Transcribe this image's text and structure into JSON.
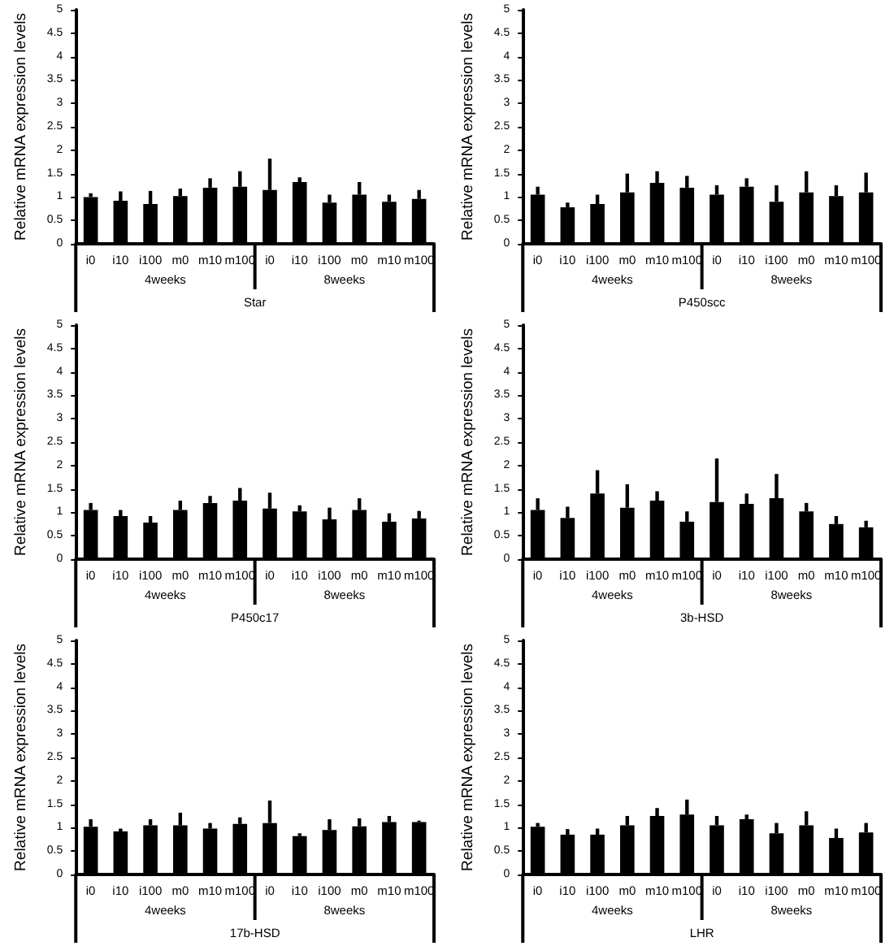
{
  "chart_data": [
    {
      "type": "bar",
      "xlabel": "Star",
      "ylabel": "Relative mRNA expression levels",
      "annotations": [
        "4weeks",
        "8weeks"
      ],
      "categories": [
        "i0",
        "i10",
        "i100",
        "m0",
        "m10",
        "m100",
        "i0",
        "i10",
        "i100",
        "m0",
        "m10",
        "m100"
      ],
      "values": [
        1.0,
        0.92,
        0.85,
        1.02,
        1.2,
        1.22,
        1.15,
        1.32,
        0.88,
        1.05,
        0.9,
        0.96
      ],
      "errors": [
        [
          1.0,
          1.08
        ],
        [
          0.92,
          1.12
        ],
        [
          0.85,
          1.13
        ],
        [
          1.02,
          1.18
        ],
        [
          1.2,
          1.4
        ],
        [
          1.22,
          1.55
        ],
        [
          1.15,
          1.82
        ],
        [
          1.32,
          1.42
        ],
        [
          0.88,
          1.05
        ],
        [
          1.05,
          1.32
        ],
        [
          0.9,
          1.05
        ],
        [
          0.96,
          1.15
        ]
      ],
      "color": "#000000",
      "ylim": [
        0,
        5
      ],
      "yticks": [
        0,
        0.5,
        1,
        1.5,
        2,
        2.5,
        3,
        3.5,
        4,
        4.5,
        5
      ]
    },
    {
      "type": "bar",
      "xlabel": "P450scc",
      "ylabel": "Relative mRNA expression levels",
      "annotations": [
        "4weeks",
        "8weeks"
      ],
      "categories": [
        "i0",
        "i10",
        "i100",
        "m0",
        "m10",
        "m100",
        "i0",
        "i10",
        "i100",
        "m0",
        "m10",
        "m100"
      ],
      "values": [
        1.05,
        0.78,
        0.85,
        1.1,
        1.3,
        1.2,
        1.05,
        1.22,
        0.9,
        1.1,
        1.02,
        1.1
      ],
      "errors": [
        [
          1.05,
          1.22
        ],
        [
          0.78,
          0.88
        ],
        [
          0.85,
          1.05
        ],
        [
          1.1,
          1.5
        ],
        [
          1.3,
          1.55
        ],
        [
          1.2,
          1.45
        ],
        [
          1.05,
          1.25
        ],
        [
          1.22,
          1.4
        ],
        [
          0.9,
          1.25
        ],
        [
          1.1,
          1.55
        ],
        [
          1.02,
          1.25
        ],
        [
          1.1,
          1.52
        ]
      ],
      "color": "#000000",
      "ylim": [
        0,
        5
      ],
      "yticks": [
        0,
        0.5,
        1,
        1.5,
        2,
        2.5,
        3,
        3.5,
        4,
        4.5,
        5
      ]
    },
    {
      "type": "bar",
      "xlabel": "P450c17",
      "ylabel": "Relative mRNA expression levels",
      "annotations": [
        "4weeks",
        "8weeks"
      ],
      "categories": [
        "i0",
        "i10",
        "i100",
        "m0",
        "m10",
        "m100",
        "i0",
        "i10",
        "i100",
        "m0",
        "m10",
        "m100"
      ],
      "values": [
        1.05,
        0.92,
        0.78,
        1.05,
        1.2,
        1.25,
        1.08,
        1.02,
        0.85,
        1.05,
        0.8,
        0.87
      ],
      "errors": [
        [
          1.05,
          1.2
        ],
        [
          0.92,
          1.05
        ],
        [
          0.78,
          0.92
        ],
        [
          1.05,
          1.25
        ],
        [
          1.2,
          1.35
        ],
        [
          1.25,
          1.52
        ],
        [
          1.08,
          1.42
        ],
        [
          1.02,
          1.15
        ],
        [
          0.85,
          1.1
        ],
        [
          1.05,
          1.3
        ],
        [
          0.8,
          0.98
        ],
        [
          0.87,
          1.03
        ]
      ],
      "color": "#000000",
      "ylim": [
        0,
        5
      ],
      "yticks": [
        0,
        0.5,
        1,
        1.5,
        2,
        2.5,
        3,
        3.5,
        4,
        4.5,
        5
      ]
    },
    {
      "type": "bar",
      "xlabel": "3b-HSD",
      "ylabel": "Relative mRNA expression levels",
      "annotations": [
        "4weeks",
        "8weeks"
      ],
      "categories": [
        "i0",
        "i10",
        "i100",
        "m0",
        "m10",
        "m100",
        "i0",
        "i10",
        "i100",
        "m0",
        "m10",
        "m100"
      ],
      "values": [
        1.05,
        0.88,
        1.4,
        1.1,
        1.25,
        0.8,
        1.22,
        1.18,
        1.3,
        1.02,
        0.75,
        0.68
      ],
      "errors": [
        [
          1.05,
          1.3
        ],
        [
          0.88,
          1.12
        ],
        [
          1.4,
          1.9
        ],
        [
          1.1,
          1.6
        ],
        [
          1.25,
          1.45
        ],
        [
          0.8,
          1.02
        ],
        [
          1.22,
          2.15
        ],
        [
          1.18,
          1.4
        ],
        [
          1.3,
          1.82
        ],
        [
          1.02,
          1.2
        ],
        [
          0.75,
          0.92
        ],
        [
          0.68,
          0.82
        ]
      ],
      "color": "#000000",
      "ylim": [
        0,
        5
      ],
      "yticks": [
        0,
        0.5,
        1,
        1.5,
        2,
        2.5,
        3,
        3.5,
        4,
        4.5,
        5
      ]
    },
    {
      "type": "bar",
      "xlabel": "17b-HSD",
      "ylabel": "Relative mRNA expression levels",
      "annotations": [
        "4weeks",
        "8weeks"
      ],
      "categories": [
        "i0",
        "i10",
        "i100",
        "m0",
        "m10",
        "m100",
        "i0",
        "i10",
        "i100",
        "m0",
        "m10",
        "m100"
      ],
      "values": [
        1.02,
        0.92,
        1.05,
        1.05,
        0.98,
        1.08,
        1.1,
        0.82,
        0.95,
        1.03,
        1.12,
        1.12
      ],
      "errors": [
        [
          1.02,
          1.18
        ],
        [
          0.92,
          0.98
        ],
        [
          1.05,
          1.18
        ],
        [
          1.05,
          1.32
        ],
        [
          0.98,
          1.1
        ],
        [
          1.08,
          1.22
        ],
        [
          1.1,
          1.58
        ],
        [
          0.82,
          0.88
        ],
        [
          0.95,
          1.18
        ],
        [
          1.03,
          1.2
        ],
        [
          1.12,
          1.25
        ],
        [
          1.12,
          1.15
        ]
      ],
      "color": "#000000",
      "ylim": [
        0,
        5
      ],
      "yticks": [
        0,
        0.5,
        1,
        1.5,
        2,
        2.5,
        3,
        3.5,
        4,
        4.5,
        5
      ]
    },
    {
      "type": "bar",
      "xlabel": "LHR",
      "ylabel": "Relative mRNA expression levels",
      "annotations": [
        "4weeks",
        "8weeks"
      ],
      "categories": [
        "i0",
        "i10",
        "i100",
        "m0",
        "m10",
        "m100",
        "i0",
        "i10",
        "i100",
        "m0",
        "m10",
        "m100"
      ],
      "values": [
        1.02,
        0.85,
        0.85,
        1.05,
        1.25,
        1.28,
        1.05,
        1.18,
        0.88,
        1.05,
        0.78,
        0.9
      ],
      "errors": [
        [
          1.02,
          1.1
        ],
        [
          0.85,
          0.97
        ],
        [
          0.85,
          0.98
        ],
        [
          1.05,
          1.25
        ],
        [
          1.25,
          1.42
        ],
        [
          1.28,
          1.6
        ],
        [
          1.05,
          1.25
        ],
        [
          1.18,
          1.28
        ],
        [
          0.88,
          1.1
        ],
        [
          1.05,
          1.35
        ],
        [
          0.78,
          0.98
        ],
        [
          0.9,
          1.1
        ]
      ],
      "color": "#000000",
      "ylim": [
        0,
        5
      ],
      "yticks": [
        0,
        0.5,
        1,
        1.5,
        2,
        2.5,
        3,
        3.5,
        4,
        4.5,
        5
      ]
    }
  ]
}
